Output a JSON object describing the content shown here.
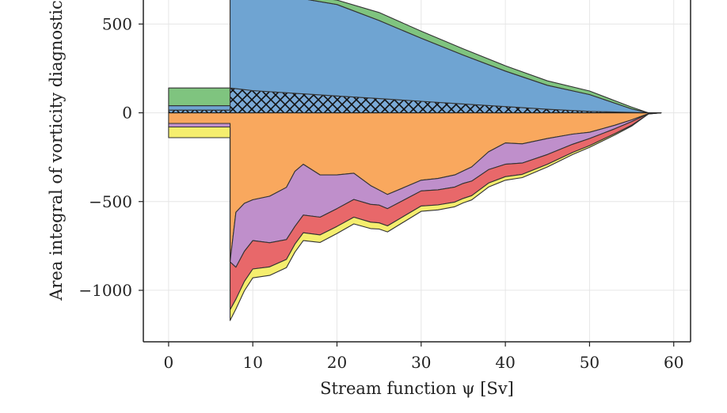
{
  "chart_data": {
    "type": "area",
    "title": "",
    "xlabel": "Stream function ψ [Sv]",
    "ylabel": "Area integral of vorticity diagnostic",
    "xlim": [
      -3,
      62
    ],
    "ylim": [
      -1290,
      680
    ],
    "xticks": [
      0,
      10,
      20,
      30,
      40,
      50,
      60
    ],
    "yticks": [
      500,
      0,
      -500,
      -1000
    ],
    "ytick_labels": [
      "500",
      "0",
      "−500",
      "−1000"
    ],
    "grid": true,
    "legend": "none",
    "stack_note": "",
    "positive_series": [
      {
        "color": "#9ec7e8",
        "hatch": true,
        "x": [
          0,
          7.3,
          7.3,
          10,
          15,
          20,
          25,
          30,
          35,
          40,
          45,
          50,
          55,
          57,
          58.5
        ],
        "values": [
          15,
          15,
          140,
          125,
          110,
          95,
          80,
          65,
          50,
          35,
          20,
          8,
          2,
          0,
          0
        ]
      },
      {
        "color": "#6fa4d2",
        "x": [
          0,
          7.3,
          7.3,
          10,
          15,
          20,
          25,
          30,
          35,
          40,
          45,
          50,
          55,
          57,
          58.5
        ],
        "values": [
          25,
          25,
          560,
          560,
          540,
          515,
          440,
          355,
          275,
          200,
          135,
          95,
          20,
          0,
          0
        ]
      },
      {
        "color": "#7fc47f",
        "x": [
          0,
          7.3,
          7.3,
          10,
          15,
          20,
          25,
          30,
          35,
          40,
          45,
          50,
          55,
          57,
          58.5
        ],
        "values": [
          100,
          100,
          0,
          10,
          15,
          25,
          45,
          40,
          35,
          30,
          25,
          20,
          10,
          0,
          0
        ]
      }
    ],
    "negative_series": [
      {
        "color": "#f9a85e",
        "x": [
          0,
          7.3,
          7.3,
          8,
          9,
          10,
          12,
          14,
          15,
          16,
          18,
          20,
          22,
          24,
          26,
          28,
          30,
          32,
          34,
          36,
          38,
          40,
          42,
          45,
          48,
          50,
          53,
          55,
          57,
          58.5
        ],
        "values": [
          -60,
          -60,
          -840,
          -560,
          -510,
          -490,
          -470,
          -420,
          -330,
          -290,
          -350,
          -350,
          -340,
          -410,
          -460,
          -420,
          -380,
          -370,
          -350,
          -305,
          -220,
          -170,
          -175,
          -145,
          -120,
          -110,
          -70,
          -40,
          -5,
          0
        ]
      },
      {
        "color": "#bf8fcb",
        "x": [
          0,
          7.3,
          7.3,
          8,
          10,
          15,
          20,
          25,
          30,
          35,
          40,
          45,
          50,
          55,
          57,
          58.5
        ],
        "values": [
          -20,
          -20,
          0,
          -310,
          -230,
          -310,
          -190,
          -85,
          -60,
          -70,
          -120,
          -90,
          -35,
          -10,
          0,
          0
        ]
      },
      {
        "color": "#e8686a",
        "x": [
          0,
          7.3,
          7.3,
          8,
          10,
          15,
          20,
          25,
          30,
          35,
          40,
          45,
          50,
          55,
          57,
          58.5
        ],
        "values": [
          0,
          0,
          -270,
          -180,
          -160,
          -100,
          -100,
          -100,
          -85,
          -85,
          -70,
          -55,
          -40,
          -20,
          -2,
          0
        ]
      },
      {
        "color": "#f5ee6e",
        "x": [
          0,
          7.3,
          7.3,
          8,
          10,
          15,
          20,
          25,
          30,
          35,
          40,
          45,
          50,
          55,
          57,
          58.5
        ],
        "values": [
          -60,
          -60,
          -60,
          -55,
          -50,
          -45,
          -40,
          -35,
          -30,
          -25,
          -20,
          -15,
          -10,
          -5,
          0,
          0
        ]
      }
    ]
  }
}
